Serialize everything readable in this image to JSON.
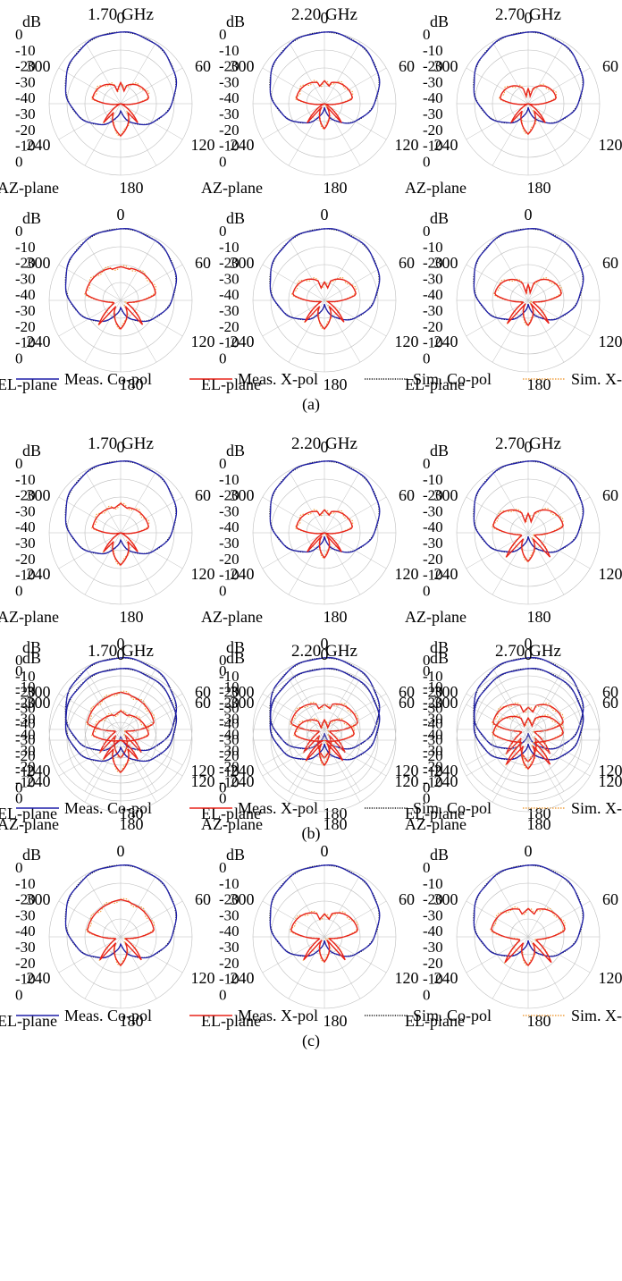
{
  "chart_data": {
    "type": "polar",
    "units": "dB",
    "radial_ticks": [
      "0",
      "-10",
      "-20",
      "-30",
      "-40",
      "-30",
      "-20",
      "-10",
      "0"
    ],
    "radial_ring_values_db": [
      0,
      -10,
      -20,
      -30,
      -40
    ],
    "angle_ticks": [
      "0",
      "60",
      "120",
      "180",
      "240",
      "300"
    ],
    "frequencies": [
      "1.70 GHz",
      "2.20 GHz",
      "2.70 GHz"
    ],
    "planes": [
      "AZ-plane",
      "EL-plane"
    ],
    "legend": {
      "meas_co": "Meas. Co-pol",
      "meas_x": "Meas. X-pol",
      "sim_co": "Sim. Co-pol",
      "sim_x": "Sim. X-pol"
    },
    "colors": {
      "meas_co": "#1f1fa8",
      "meas_x": "#e8231a",
      "sim_co": "#1a1a1a",
      "sim_x": "#f0a040",
      "grid": "#bdbdbd"
    },
    "pattern_model": "co-pol and x-pol approximated per panel as shape descriptors (dB)",
    "groups": [
      {
        "caption": "(a)",
        "panels": [
          {
            "freq": "1.70 GHz",
            "plane": "AZ-plane",
            "co": {
              "front": 0,
              "back": -36,
              "side": -6
            },
            "x": {
              "front": -21,
              "dip": -33,
              "lobe": -24,
              "back": -22
            }
          },
          {
            "freq": "2.20 GHz",
            "plane": "AZ-plane",
            "co": {
              "front": 0,
              "back": -38,
              "side": -8
            },
            "x": {
              "front": -23,
              "dip": -30,
              "lobe": -24,
              "back": -26
            }
          },
          {
            "freq": "2.70 GHz",
            "plane": "AZ-plane",
            "co": {
              "front": 0,
              "back": -38,
              "side": -7
            },
            "x": {
              "front": -25,
              "dip": -36,
              "lobe": -24,
              "back": -23
            }
          },
          {
            "freq": "1.70 GHz",
            "plane": "EL-plane",
            "co": {
              "front": 0,
              "back": -36,
              "side": -8
            },
            "x": {
              "front": -20,
              "dip": -22,
              "lobe": -20,
              "back": -24
            }
          },
          {
            "freq": "2.20 GHz",
            "plane": "EL-plane",
            "co": {
              "front": 0,
              "back": -38,
              "side": -8
            },
            "x": {
              "front": -25,
              "dip": -33,
              "lobe": -22,
              "back": -24
            }
          },
          {
            "freq": "2.70 GHz",
            "plane": "EL-plane",
            "co": {
              "front": 0,
              "back": -38,
              "side": -8
            },
            "x": {
              "front": -24,
              "dip": -36,
              "lobe": -21,
              "back": -26
            }
          }
        ]
      },
      {
        "caption": "(b)",
        "panels": [
          {
            "freq": "1.70 GHz",
            "plane": "AZ-plane",
            "co": {
              "front": 0,
              "back": -36,
              "side": -6
            },
            "x": {
              "front": -20,
              "dip": -26,
              "lobe": -24,
              "back": -22
            }
          },
          {
            "freq": "2.20 GHz",
            "plane": "AZ-plane",
            "co": {
              "front": 0,
              "back": -38,
              "side": -8
            },
            "x": {
              "front": -23,
              "dip": -30,
              "lobe": -24,
              "back": -26
            }
          },
          {
            "freq": "2.70 GHz",
            "plane": "AZ-plane",
            "co": {
              "front": 0,
              "back": -38,
              "side": -7
            },
            "x": {
              "front": -22,
              "dip": -34,
              "lobe": -20,
              "back": -24
            }
          },
          {
            "freq": "1.70 GHz",
            "plane": "EL-plane",
            "co": {
              "front": 0,
              "back": -36,
              "side": -8
            },
            "x": {
              "front": -18,
              "dip": -20,
              "lobe": -21,
              "back": -24
            }
          },
          {
            "freq": "2.20 GHz",
            "plane": "EL-plane",
            "co": {
              "front": 0,
              "back": -38,
              "side": -8
            },
            "x": {
              "front": -23,
              "dip": -28,
              "lobe": -21,
              "back": -24
            }
          },
          {
            "freq": "2.70 GHz",
            "plane": "EL-plane",
            "co": {
              "front": 0,
              "back": -38,
              "side": -8
            },
            "x": {
              "front": -24,
              "dip": -30,
              "lobe": -20,
              "back": -22
            }
          }
        ]
      },
      {
        "caption": "(c)",
        "panels": [
          {
            "freq": "1.70 GHz",
            "plane": "AZ-plane",
            "co": {
              "front": 0,
              "back": -36,
              "side": -6
            },
            "x": {
              "front": -20,
              "dip": -26,
              "lobe": -24,
              "back": -22
            }
          },
          {
            "freq": "2.20 GHz",
            "plane": "AZ-plane",
            "co": {
              "front": 0,
              "back": -38,
              "side": -8
            },
            "x": {
              "front": -22,
              "dip": -33,
              "lobe": -23,
              "back": -26
            }
          },
          {
            "freq": "2.70 GHz",
            "plane": "AZ-plane",
            "co": {
              "front": 0,
              "back": -38,
              "side": -7
            },
            "x": {
              "front": -21,
              "dip": -32,
              "lobe": -20,
              "back": -24
            }
          },
          {
            "freq": "1.70 GHz",
            "plane": "EL-plane",
            "co": {
              "front": 0,
              "back": -36,
              "side": -8
            },
            "x": {
              "front": -18,
              "dip": -20,
              "lobe": -21,
              "back": -24
            }
          },
          {
            "freq": "2.20 GHz",
            "plane": "EL-plane",
            "co": {
              "front": 0,
              "back": -38,
              "side": -8
            },
            "x": {
              "front": -23,
              "dip": -30,
              "lobe": -21,
              "back": -26
            }
          },
          {
            "freq": "2.70 GHz",
            "plane": "EL-plane",
            "co": {
              "front": 0,
              "back": -38,
              "side": -8
            },
            "x": {
              "front": -20,
              "dip": -27,
              "lobe": -19,
              "back": -24
            }
          }
        ]
      }
    ]
  }
}
